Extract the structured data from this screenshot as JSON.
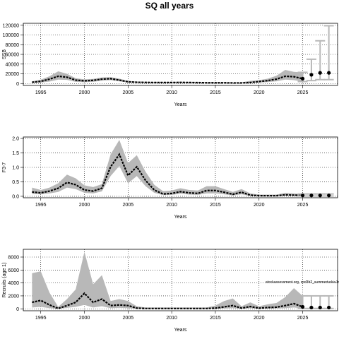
{
  "chart_data": {
    "title": "SQ all years",
    "annotation": "stockassessment.org, cod3b2_summerturkiaJoint2025",
    "panels": [
      {
        "type": "line",
        "ylabel": "SSB",
        "xlabel": "Years",
        "xlim": [
          1993,
          2029
        ],
        "ylim": [
          -4000,
          124000
        ],
        "xticks": [
          1995,
          2000,
          2005,
          2010,
          2015,
          2020,
          2025
        ],
        "yticks": [
          0,
          20000,
          40000,
          60000,
          80000,
          100000,
          120000
        ],
        "grid": true,
        "estimate": {
          "x": [
            1994,
            1995,
            1996,
            1997,
            1998,
            1999,
            2000,
            2001,
            2002,
            2003,
            2004,
            2005,
            2006,
            2007,
            2008,
            2009,
            2010,
            2011,
            2012,
            2013,
            2014,
            2015,
            2016,
            2017,
            2018,
            2019,
            2020,
            2021,
            2022,
            2023,
            2024,
            2025
          ],
          "y": [
            2500,
            4500,
            9000,
            15000,
            13000,
            7000,
            5500,
            6500,
            9000,
            10000,
            7000,
            3500,
            2500,
            2200,
            2000,
            2000,
            2000,
            2200,
            2000,
            1800,
            1500,
            1500,
            1500,
            1200,
            1200,
            2000,
            4000,
            6000,
            9000,
            15000,
            14000,
            10000
          ],
          "lower": [
            1000,
            2000,
            4000,
            8000,
            7500,
            3500,
            2800,
            3500,
            6000,
            7000,
            4500,
            2000,
            1400,
            1200,
            1000,
            1000,
            1100,
            1200,
            1100,
            900,
            700,
            700,
            700,
            500,
            500,
            900,
            2000,
            3000,
            4500,
            8000,
            7000,
            4000
          ],
          "upper": [
            4500,
            8000,
            15000,
            25000,
            20000,
            11000,
            8500,
            9500,
            12500,
            13000,
            10000,
            5500,
            4000,
            3500,
            3200,
            3200,
            3200,
            3500,
            3200,
            3000,
            2800,
            2800,
            2800,
            2200,
            2500,
            5500,
            7000,
            10000,
            16000,
            28000,
            24000,
            23000
          ]
        },
        "forecast": {
          "x": [
            2025,
            2026,
            2027,
            2028
          ],
          "median": [
            10000,
            18000,
            22000,
            22000
          ],
          "lower": [
            4000,
            6000,
            8000,
            8000
          ],
          "upper": [
            23000,
            50000,
            88000,
            119000
          ]
        }
      },
      {
        "type": "line",
        "ylabel": "F3-7",
        "xlabel": "Years",
        "xlim": [
          1993,
          2029
        ],
        "ylim": [
          -0.05,
          2.05
        ],
        "xticks": [
          1995,
          2000,
          2005,
          2010,
          2015,
          2020,
          2025
        ],
        "yticks": [
          0.0,
          0.5,
          1.0,
          1.5,
          2.0
        ],
        "ytick_labels": [
          "0.0",
          "0.5",
          "1.0",
          "1.5",
          "2.0"
        ],
        "grid": true,
        "estimate": {
          "x": [
            1994,
            1995,
            1996,
            1997,
            1998,
            1999,
            2000,
            2001,
            2002,
            2003,
            2004,
            2005,
            2006,
            2007,
            2008,
            2009,
            2010,
            2011,
            2012,
            2013,
            2014,
            2015,
            2016,
            2017,
            2018,
            2019,
            2020,
            2021,
            2022,
            2023,
            2024,
            2025
          ],
          "y": [
            0.15,
            0.12,
            0.18,
            0.28,
            0.48,
            0.4,
            0.22,
            0.18,
            0.28,
            1.02,
            1.45,
            0.72,
            1.02,
            0.55,
            0.22,
            0.08,
            0.1,
            0.16,
            0.12,
            0.1,
            0.2,
            0.2,
            0.14,
            0.07,
            0.14,
            0.04,
            0.02,
            0.02,
            0.02,
            0.05,
            0.04,
            0.03
          ],
          "lower": [
            0.08,
            0.07,
            0.1,
            0.15,
            0.3,
            0.25,
            0.12,
            0.1,
            0.17,
            0.7,
            1.05,
            0.45,
            0.7,
            0.35,
            0.12,
            0.04,
            0.05,
            0.09,
            0.06,
            0.05,
            0.1,
            0.1,
            0.07,
            0.03,
            0.07,
            0.015,
            0.005,
            0.005,
            0.005,
            0.02,
            0.015,
            0.01
          ],
          "upper": [
            0.3,
            0.22,
            0.3,
            0.45,
            0.75,
            0.62,
            0.38,
            0.32,
            0.42,
            1.45,
            1.95,
            1.15,
            1.42,
            0.85,
            0.4,
            0.18,
            0.2,
            0.28,
            0.22,
            0.2,
            0.35,
            0.35,
            0.25,
            0.15,
            0.25,
            0.1,
            0.06,
            0.06,
            0.06,
            0.12,
            0.1,
            0.08
          ]
        },
        "forecast": {
          "x": [
            2025,
            2026,
            2027,
            2028
          ],
          "median": [
            0.03,
            0.03,
            0.03,
            0.03
          ],
          "lower": [
            0.01,
            0.01,
            0.01,
            0.01
          ],
          "upper": [
            0.08,
            0.08,
            0.08,
            0.08
          ]
        }
      },
      {
        "type": "line",
        "ylabel": "Recruits (age 1)",
        "xlabel": "Years",
        "xlim": [
          1993,
          2029
        ],
        "ylim": [
          -300,
          9200
        ],
        "xticks": [
          1995,
          2000,
          2005,
          2010,
          2015,
          2020,
          2025
        ],
        "yticks": [
          0,
          2000,
          4000,
          6000,
          8000
        ],
        "grid": true,
        "estimate": {
          "x": [
            1994,
            1995,
            1996,
            1997,
            1998,
            1999,
            2000,
            2001,
            2002,
            2003,
            2004,
            2005,
            2006,
            2007,
            2008,
            2009,
            2010,
            2011,
            2012,
            2013,
            2014,
            2015,
            2016,
            2017,
            2018,
            2019,
            2020,
            2021,
            2022,
            2023,
            2024,
            2025
          ],
          "y": [
            1000,
            1300,
            600,
            50,
            500,
            1000,
            2400,
            1000,
            1500,
            500,
            600,
            500,
            100,
            50,
            50,
            50,
            50,
            50,
            50,
            50,
            50,
            100,
            300,
            500,
            100,
            350,
            100,
            200,
            250,
            500,
            800,
            300
          ],
          "lower": [
            200,
            300,
            100,
            5,
            150,
            300,
            600,
            200,
            400,
            100,
            150,
            100,
            20,
            10,
            10,
            10,
            10,
            10,
            10,
            10,
            10,
            20,
            60,
            100,
            20,
            80,
            20,
            40,
            50,
            100,
            200,
            50
          ],
          "upper": [
            5500,
            5800,
            2500,
            300,
            1500,
            3000,
            8800,
            3800,
            5200,
            1200,
            1500,
            1200,
            400,
            200,
            200,
            200,
            200,
            200,
            200,
            200,
            200,
            500,
            1200,
            1600,
            400,
            1000,
            400,
            700,
            900,
            1800,
            3200,
            2000
          ]
        },
        "forecast": {
          "x": [
            2025,
            2026,
            2027,
            2028
          ],
          "median": [
            300,
            200,
            200,
            200
          ],
          "lower": [
            50,
            50,
            50,
            50
          ],
          "upper": [
            2000,
            2000,
            2000,
            2000
          ]
        }
      }
    ]
  }
}
